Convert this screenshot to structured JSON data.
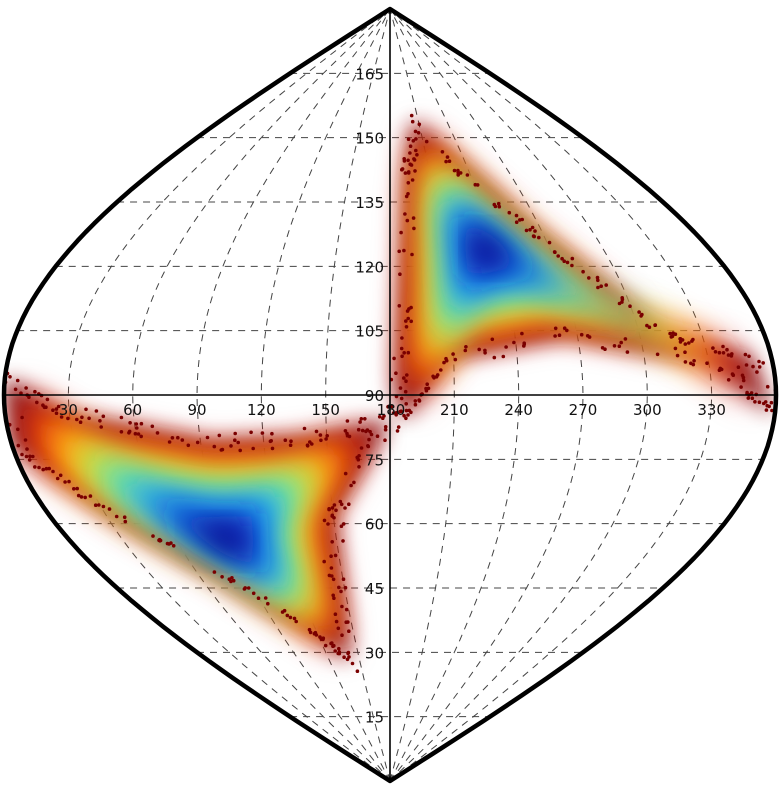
{
  "chart_data": {
    "type": "heatmap",
    "projection": "sinusoidal (phi, psi) map",
    "title": "",
    "xlabel": "",
    "ylabel": "",
    "xlim": [
      0,
      360
    ],
    "ylim": [
      0,
      180
    ],
    "x_ticks": [
      30,
      60,
      90,
      120,
      150,
      180,
      210,
      240,
      270,
      300,
      330
    ],
    "y_ticks_upper": [
      105,
      120,
      135,
      150,
      165
    ],
    "y_tick_center": 90,
    "y_ticks_lower": [
      15,
      30,
      45,
      60,
      75
    ],
    "grid": true,
    "colormap": [
      "#7a0000",
      "#c81e1e",
      "#ff6a00",
      "#ffd21e",
      "#9ef06a",
      "#2dd3e6",
      "#1f7ff2",
      "#0a1fb8",
      "#000a6e"
    ],
    "clusters": [
      {
        "label": "",
        "polygon": [
          [
            183,
            92
          ],
          [
            192,
            140
          ],
          [
            205,
            154
          ],
          [
            265,
            128
          ],
          [
            312,
            104
          ],
          [
            350,
            99
          ],
          [
            360,
            85
          ],
          [
            330,
            98
          ],
          [
            265,
            104
          ],
          [
            208,
            99
          ],
          [
            186,
            84
          ]
        ],
        "density_peak": [
          235,
          125
        ]
      },
      {
        "label": "",
        "polygon": [
          [
            0,
            94
          ],
          [
            30,
            85
          ],
          [
            95,
            79
          ],
          [
            140,
            80
          ],
          [
            180,
            84
          ],
          [
            150,
            62
          ],
          [
            140,
            28
          ],
          [
            118,
            34
          ],
          [
            75,
            48
          ],
          [
            35,
            62
          ],
          [
            0,
            78
          ]
        ],
        "density_peak": [
          85,
          55
        ]
      }
    ]
  }
}
